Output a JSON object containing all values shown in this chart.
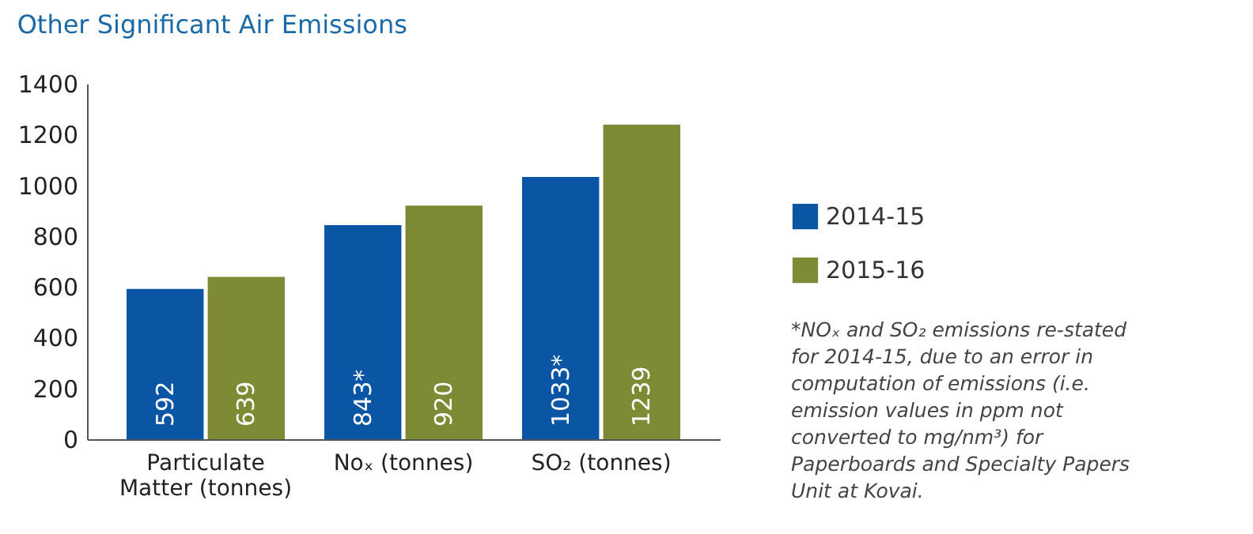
{
  "chart_data": {
    "type": "bar",
    "title": "Other Significant Air Emissions",
    "categories": [
      "Particulate Matter (tonnes)",
      "Noₓ (tonnes)",
      "SO₂ (tonnes)"
    ],
    "series": [
      {
        "name": "2014-15",
        "color": "#0b56a4",
        "values": [
          592,
          843,
          1033
        ],
        "value_labels": [
          "592",
          "843*",
          "1033*"
        ]
      },
      {
        "name": "2015-16",
        "color": "#7f8b34",
        "values": [
          639,
          920,
          1239
        ],
        "value_labels": [
          "639",
          "920",
          "1239"
        ]
      }
    ],
    "ylim": [
      0,
      1400
    ],
    "yticks": [
      0,
      200,
      400,
      600,
      800,
      1000,
      1200,
      1400
    ],
    "grid": false,
    "legend": "right",
    "annotations": [
      "*NOₓ and SO₂ emissions re-stated for 2014-15, due to an error in computation of emissions (i.e. emission values in ppm not converted to mg/nm³) for Paperboards and Specialty Papers Unit at Kovai."
    ]
  }
}
